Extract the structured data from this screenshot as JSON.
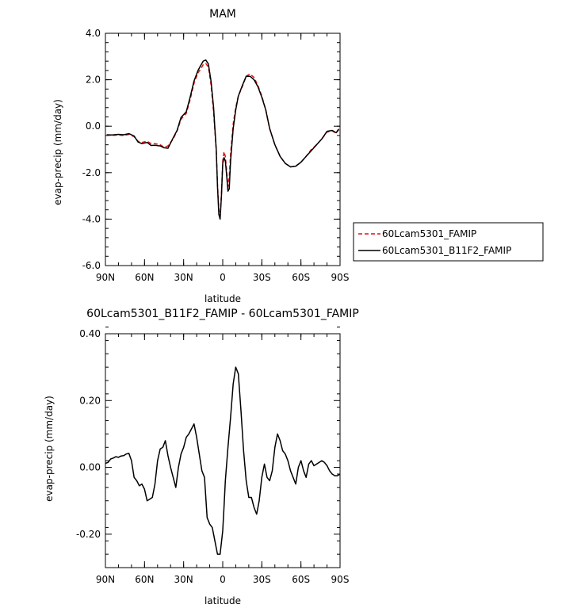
{
  "chart_data": [
    {
      "type": "line",
      "title": "MAM",
      "xlabel": "latitude",
      "ylabel": "evap-precip (mm/day)",
      "xlim": [
        -90,
        90
      ],
      "ylim": [
        -6.0,
        4.0
      ],
      "x_ticks": [
        -90,
        -60,
        -30,
        0,
        30,
        60,
        90
      ],
      "x_tick_labels": [
        "90N",
        "60N",
        "30N",
        "0",
        "30S",
        "60S",
        "90S"
      ],
      "y_ticks": [
        -6,
        -4,
        -2,
        0,
        2,
        4
      ],
      "y_tick_labels": [
        "-6.0",
        "-4.0",
        "-2.0",
        "0.0",
        "2.0",
        "4.0"
      ],
      "legend_position": "right",
      "series": [
        {
          "name": "60Lcam5301_FAMIP",
          "color": "#e01010",
          "dash": "dashed",
          "x": [
            -89,
            -85,
            -80,
            -76,
            -72,
            -68,
            -65,
            -62,
            -58,
            -55,
            -52,
            -48,
            -45,
            -42,
            -38,
            -35,
            -32,
            -28,
            -25,
            -22,
            -19,
            -17,
            -15,
            -13,
            -11,
            -9,
            -7,
            -6,
            -5,
            -4,
            -3,
            -2,
            -1,
            0,
            1,
            2,
            3,
            4,
            5,
            6,
            8,
            10,
            12,
            15,
            18,
            21,
            24,
            27,
            30,
            33,
            36,
            40,
            44,
            48,
            52,
            56,
            60,
            64,
            68,
            72,
            76,
            80,
            84,
            87,
            89
          ],
          "y": [
            -0.38,
            -0.4,
            -0.38,
            -0.4,
            -0.35,
            -0.45,
            -0.65,
            -0.7,
            -0.65,
            -0.75,
            -0.75,
            -0.8,
            -0.9,
            -0.85,
            -0.55,
            -0.2,
            0.3,
            0.55,
            1.15,
            1.85,
            2.3,
            2.45,
            2.65,
            2.7,
            2.55,
            1.8,
            0.6,
            -0.2,
            -1.0,
            -2.5,
            -3.6,
            -3.9,
            -2.9,
            -1.5,
            -1.1,
            -1.3,
            -1.9,
            -2.6,
            -2.2,
            -1.2,
            0.1,
            0.8,
            1.3,
            1.7,
            2.15,
            2.25,
            2.1,
            1.75,
            1.3,
            0.7,
            -0.1,
            -0.8,
            -1.3,
            -1.6,
            -1.75,
            -1.72,
            -1.55,
            -1.3,
            -1.0,
            -0.8,
            -0.55,
            -0.25,
            -0.2,
            -0.3,
            -0.15
          ]
        },
        {
          "name": "60Lcam5301_B11F2_FAMIP",
          "color": "#000000",
          "dash": "solid",
          "x": [
            -89,
            -85,
            -80,
            -76,
            -72,
            -68,
            -65,
            -62,
            -58,
            -55,
            -52,
            -48,
            -45,
            -42,
            -38,
            -35,
            -32,
            -28,
            -25,
            -22,
            -19,
            -17,
            -15,
            -13,
            -11,
            -9,
            -7,
            -6,
            -5,
            -4,
            -3,
            -2,
            -1,
            0,
            1,
            2,
            3,
            4,
            5,
            6,
            8,
            10,
            12,
            15,
            18,
            21,
            24,
            27,
            30,
            33,
            36,
            40,
            44,
            48,
            52,
            56,
            60,
            64,
            68,
            72,
            76,
            80,
            84,
            87,
            89
          ],
          "y": [
            -0.37,
            -0.38,
            -0.35,
            -0.37,
            -0.32,
            -0.42,
            -0.68,
            -0.75,
            -0.7,
            -0.83,
            -0.82,
            -0.85,
            -0.93,
            -0.95,
            -0.5,
            -0.18,
            0.38,
            0.62,
            1.25,
            1.95,
            2.4,
            2.6,
            2.8,
            2.85,
            2.68,
            1.95,
            0.8,
            -0.1,
            -1.0,
            -2.6,
            -3.8,
            -4.0,
            -3.0,
            -1.6,
            -1.35,
            -1.5,
            -2.1,
            -2.8,
            -2.7,
            -1.5,
            -0.1,
            0.7,
            1.3,
            1.75,
            2.15,
            2.15,
            2.0,
            1.7,
            1.25,
            0.7,
            -0.1,
            -0.8,
            -1.3,
            -1.6,
            -1.75,
            -1.72,
            -1.55,
            -1.3,
            -1.05,
            -0.8,
            -0.55,
            -0.22,
            -0.18,
            -0.28,
            -0.12
          ]
        }
      ]
    },
    {
      "type": "line",
      "title": "60Lcam5301_B11F2_FAMIP - 60Lcam5301_FAMIP",
      "xlabel": "latitude",
      "ylabel": "evap-precip (mm/day)",
      "xlim": [
        -90,
        90
      ],
      "ylim": [
        -0.3,
        0.4
      ],
      "x_ticks": [
        -90,
        -60,
        -30,
        0,
        30,
        60,
        90
      ],
      "x_tick_labels": [
        "90N",
        "60N",
        "30N",
        "0",
        "30S",
        "60S",
        "90S"
      ],
      "y_ticks": [
        -0.2,
        0.0,
        0.2,
        0.4
      ],
      "y_tick_labels": [
        "-0.20",
        "0.00",
        "0.20",
        "0.40"
      ],
      "series": [
        {
          "color": "#000000",
          "dash": "solid",
          "x": [
            -90,
            -88,
            -86,
            -84,
            -82,
            -80,
            -78,
            -76,
            -74,
            -72,
            -70,
            -68,
            -66,
            -64,
            -62,
            -60,
            -58,
            -56,
            -54,
            -52,
            -50,
            -48,
            -46,
            -44,
            -42,
            -40,
            -38,
            -36,
            -34,
            -32,
            -30,
            -28,
            -26,
            -24,
            -22,
            -20,
            -18,
            -16,
            -14,
            -12,
            -10,
            -8,
            -6,
            -4,
            -2,
            0,
            1,
            2,
            4,
            6,
            8,
            10,
            12,
            14,
            16,
            18,
            20,
            22,
            24,
            26,
            28,
            30,
            32,
            34,
            36,
            38,
            40,
            42,
            44,
            46,
            48,
            50,
            52,
            54,
            56,
            58,
            60,
            62,
            64,
            66,
            68,
            70,
            72,
            74,
            76,
            78,
            80,
            82,
            84,
            86,
            88,
            90
          ],
          "y": [
            0.012,
            0.015,
            0.025,
            0.028,
            0.032,
            0.03,
            0.034,
            0.035,
            0.04,
            0.042,
            0.02,
            -0.03,
            -0.04,
            -0.055,
            -0.05,
            -0.065,
            -0.1,
            -0.095,
            -0.09,
            -0.05,
            0.02,
            0.055,
            0.06,
            0.08,
            0.035,
            0.0,
            -0.03,
            -0.06,
            0.0,
            0.04,
            0.06,
            0.09,
            0.1,
            0.115,
            0.13,
            0.09,
            0.04,
            -0.01,
            -0.03,
            -0.15,
            -0.17,
            -0.18,
            -0.22,
            -0.26,
            -0.26,
            -0.19,
            -0.12,
            -0.04,
            0.06,
            0.15,
            0.25,
            0.3,
            0.28,
            0.17,
            0.05,
            -0.04,
            -0.09,
            -0.09,
            -0.12,
            -0.14,
            -0.1,
            -0.03,
            0.01,
            -0.03,
            -0.04,
            -0.01,
            0.06,
            0.1,
            0.08,
            0.05,
            0.04,
            0.02,
            -0.01,
            -0.03,
            -0.05,
            0.0,
            0.02,
            -0.01,
            -0.03,
            0.01,
            0.02,
            0.005,
            0.01,
            0.015,
            0.02,
            0.015,
            0.005,
            -0.01,
            -0.02,
            -0.025,
            -0.025,
            -0.02
          ]
        }
      ]
    }
  ]
}
